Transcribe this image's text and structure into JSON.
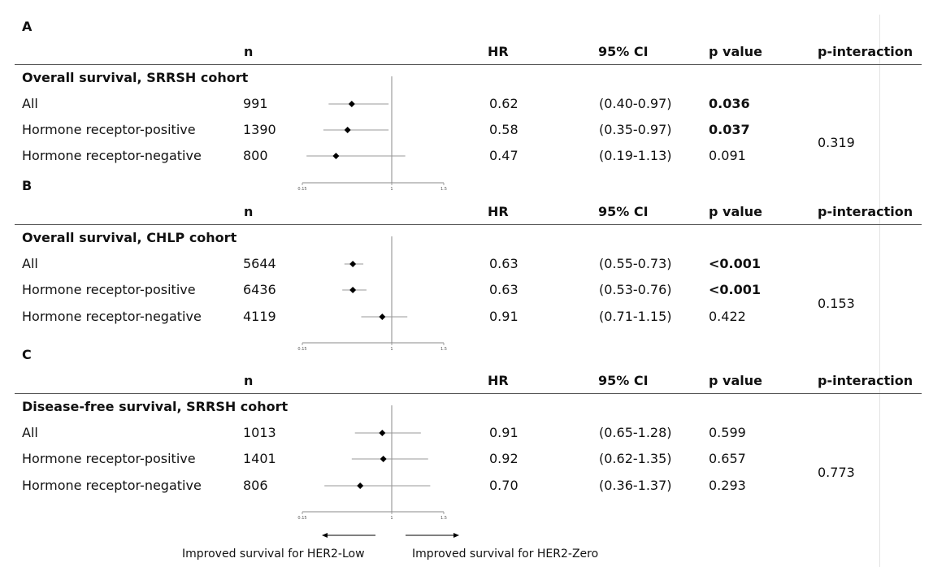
{
  "headers": {
    "n": "n",
    "hr": "HR",
    "ci": "95% CI",
    "p": "p value",
    "pint": "p-interaction"
  },
  "footer": {
    "left": "Improved survival for HER2-Low",
    "right": "Improved survival for HER2-Zero"
  },
  "chart_data": {
    "type": "forest",
    "x_ticks": [
      "0.15",
      "1",
      "1.5"
    ],
    "reference_line": 1,
    "panels": [
      {
        "letter": "A",
        "title": "Overall survival, SRRSH cohort",
        "p_interaction": "0.319",
        "rows": [
          {
            "label": "All",
            "n": "991",
            "hr": 0.62,
            "hr_text": "0.62",
            "ci_low": 0.4,
            "ci_high": 0.97,
            "ci_text": "(0.40-0.97)",
            "p": "0.036",
            "p_bold": true
          },
          {
            "label": "Hormone receptor-positive",
            "n": "1390",
            "hr": 0.58,
            "hr_text": "0.58",
            "ci_low": 0.35,
            "ci_high": 0.97,
            "ci_text": "(0.35-0.97)",
            "p": "0.037",
            "p_bold": true
          },
          {
            "label": "Hormone receptor-negative",
            "n": "800",
            "hr": 0.47,
            "hr_text": "0.47",
            "ci_low": 0.19,
            "ci_high": 1.13,
            "ci_text": "(0.19-1.13)",
            "p": "0.091",
            "p_bold": false
          }
        ]
      },
      {
        "letter": "B",
        "title": "Overall survival, CHLP cohort",
        "p_interaction": "0.153",
        "rows": [
          {
            "label": "All",
            "n": "5644",
            "hr": 0.63,
            "hr_text": "0.63",
            "ci_low": 0.55,
            "ci_high": 0.73,
            "ci_text": "(0.55-0.73)",
            "p": "<0.001",
            "p_bold": true
          },
          {
            "label": "Hormone receptor-positive",
            "n": "6436",
            "hr": 0.63,
            "hr_text": "0.63",
            "ci_low": 0.53,
            "ci_high": 0.76,
            "ci_text": "(0.53-0.76)",
            "p": "<0.001",
            "p_bold": true
          },
          {
            "label": "Hormone receptor-negative",
            "n": "4119",
            "hr": 0.91,
            "hr_text": "0.91",
            "ci_low": 0.71,
            "ci_high": 1.15,
            "ci_text": "(0.71-1.15)",
            "p": "0.422",
            "p_bold": false
          }
        ]
      },
      {
        "letter": "C",
        "title": "Disease-free survival, SRRSH cohort",
        "p_interaction": "0.773",
        "rows": [
          {
            "label": "All",
            "n": "1013",
            "hr": 0.91,
            "hr_text": "0.91",
            "ci_low": 0.65,
            "ci_high": 1.28,
            "ci_text": "(0.65-1.28)",
            "p": "0.599",
            "p_bold": false
          },
          {
            "label": "Hormone receptor-positive",
            "n": "1401",
            "hr": 0.92,
            "hr_text": "0.92",
            "ci_low": 0.62,
            "ci_high": 1.35,
            "ci_text": "(0.62-1.35)",
            "p": "0.657",
            "p_bold": false
          },
          {
            "label": "Hormone receptor-negative",
            "n": "806",
            "hr": 0.7,
            "hr_text": "0.70",
            "ci_low": 0.36,
            "ci_high": 1.37,
            "ci_text": "(0.36-1.37)",
            "p": "0.293",
            "p_bold": false
          }
        ]
      }
    ]
  }
}
